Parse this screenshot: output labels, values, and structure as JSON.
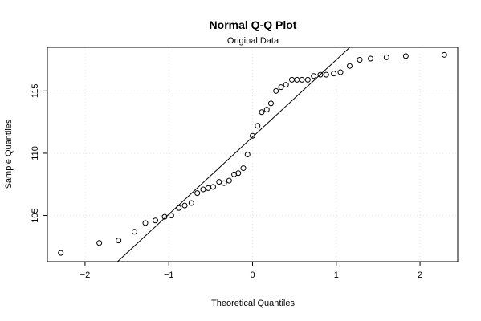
{
  "chart_data": {
    "type": "scatter",
    "title": "Normal Q-Q Plot",
    "subtitle": "Original Data",
    "xlabel": "Theoretical Quantiles",
    "ylabel": "Sample Quantiles",
    "xlim": [
      -2.45,
      2.45
    ],
    "ylim": [
      101.3,
      118.5
    ],
    "x_ticks": [
      -2,
      -1,
      0,
      1,
      2
    ],
    "x_tick_labels": [
      "−2",
      "−1",
      "0",
      "1",
      "2"
    ],
    "y_ticks": [
      105,
      110,
      115
    ],
    "y_tick_labels": [
      "105",
      "110",
      "115"
    ],
    "grid": true,
    "points": [
      {
        "x": -2.29,
        "y": 102.0
      },
      {
        "x": -1.83,
        "y": 102.8
      },
      {
        "x": -1.6,
        "y": 103.0
      },
      {
        "x": -1.41,
        "y": 103.7
      },
      {
        "x": -1.28,
        "y": 104.4
      },
      {
        "x": -1.16,
        "y": 104.6
      },
      {
        "x": -1.05,
        "y": 104.9
      },
      {
        "x": -0.97,
        "y": 105.0
      },
      {
        "x": -0.88,
        "y": 105.6
      },
      {
        "x": -0.81,
        "y": 105.8
      },
      {
        "x": -0.73,
        "y": 106.0
      },
      {
        "x": -0.66,
        "y": 106.8
      },
      {
        "x": -0.59,
        "y": 107.1
      },
      {
        "x": -0.53,
        "y": 107.2
      },
      {
        "x": -0.47,
        "y": 107.3
      },
      {
        "x": -0.4,
        "y": 107.7
      },
      {
        "x": -0.34,
        "y": 107.6
      },
      {
        "x": -0.28,
        "y": 107.8
      },
      {
        "x": -0.22,
        "y": 108.3
      },
      {
        "x": -0.17,
        "y": 108.4
      },
      {
        "x": -0.11,
        "y": 108.8
      },
      {
        "x": -0.06,
        "y": 109.9
      },
      {
        "x": 0.0,
        "y": 111.4
      },
      {
        "x": 0.06,
        "y": 112.2
      },
      {
        "x": 0.11,
        "y": 113.3
      },
      {
        "x": 0.17,
        "y": 113.5
      },
      {
        "x": 0.22,
        "y": 114.0
      },
      {
        "x": 0.28,
        "y": 115.0
      },
      {
        "x": 0.34,
        "y": 115.3
      },
      {
        "x": 0.4,
        "y": 115.5
      },
      {
        "x": 0.47,
        "y": 115.9
      },
      {
        "x": 0.53,
        "y": 115.9
      },
      {
        "x": 0.59,
        "y": 115.9
      },
      {
        "x": 0.66,
        "y": 115.9
      },
      {
        "x": 0.73,
        "y": 116.2
      },
      {
        "x": 0.81,
        "y": 116.3
      },
      {
        "x": 0.88,
        "y": 116.3
      },
      {
        "x": 0.97,
        "y": 116.4
      },
      {
        "x": 1.05,
        "y": 116.5
      },
      {
        "x": 1.16,
        "y": 117.0
      },
      {
        "x": 1.28,
        "y": 117.5
      },
      {
        "x": 1.41,
        "y": 117.6
      },
      {
        "x": 1.6,
        "y": 117.7
      },
      {
        "x": 1.83,
        "y": 117.8
      },
      {
        "x": 2.29,
        "y": 117.9
      }
    ],
    "reference_line": {
      "intercept": 111.3,
      "slope": 6.2
    }
  }
}
